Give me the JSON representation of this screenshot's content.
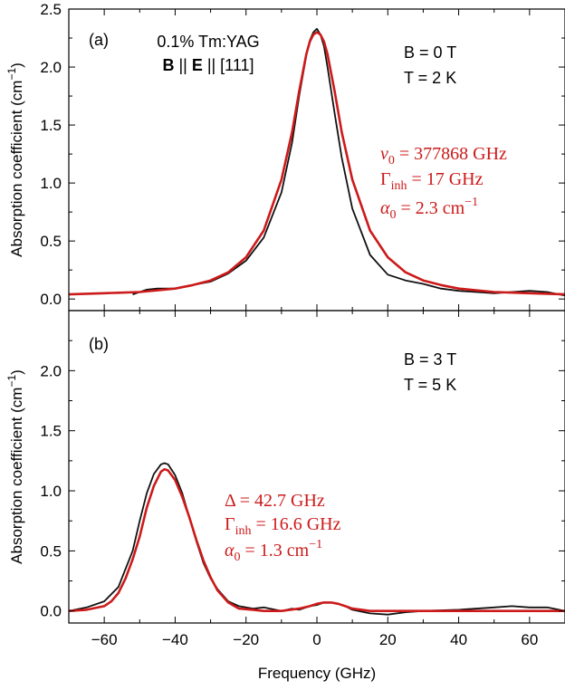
{
  "chart_data": {
    "type": "line",
    "xlabel": "Frequency (GHz)",
    "xlim": [
      -70,
      70
    ],
    "x_ticks": [
      -60,
      -40,
      -20,
      0,
      20,
      40,
      60
    ],
    "colors": {
      "measured": "#111111",
      "fit": "#cc1a1a"
    },
    "panels": [
      {
        "label": "(a)",
        "ylabel": "Absorption coefficient (cm",
        "ylabel_sup": "−1",
        "ylabel_close": ")",
        "ylim": [
          -0.1,
          2.5
        ],
        "y_ticks": [
          "0.0",
          "0.5",
          "1.0",
          "1.5",
          "2.0",
          "2.5"
        ],
        "sample_line1": "0.1% Tm:YAG",
        "sample_line2": {
          "b": "B",
          "sep1": " || ",
          "e": "E",
          "sep2": " || [111]"
        },
        "conditions": [
          "B = 0 T",
          "T = 2 K"
        ],
        "fit_params": {
          "line1": {
            "sym": "ν",
            "sub": "0",
            "rest": " = 377868 GHz"
          },
          "line2": {
            "sym": "Γ",
            "sub": "inh",
            "rest": " = 17 GHz"
          },
          "line3": {
            "sym": "α",
            "sub": "0",
            "rest": " = 2.3 cm",
            "sup": "−1"
          }
        },
        "series": [
          {
            "role": "measured",
            "x": [
              -52,
              -48,
              -45,
              -40,
              -35,
              -30,
              -25,
              -20,
              -15,
              -10,
              -7,
              -5,
              -3,
              -2,
              -1,
              0,
              1,
              2,
              3,
              5,
              7,
              10,
              15,
              20,
              25,
              30,
              35,
              40,
              45,
              50,
              55,
              60,
              65,
              70
            ],
            "y": [
              0.04,
              0.08,
              0.09,
              0.09,
              0.12,
              0.15,
              0.22,
              0.33,
              0.53,
              0.92,
              1.35,
              1.75,
              2.1,
              2.23,
              2.3,
              2.33,
              2.28,
              2.18,
              2.0,
              1.6,
              1.22,
              0.78,
              0.38,
              0.21,
              0.16,
              0.13,
              0.09,
              0.07,
              0.06,
              0.05,
              0.06,
              0.07,
              0.06,
              0.03
            ]
          },
          {
            "role": "fit",
            "x": [
              -70,
              -60,
              -50,
              -40,
              -35,
              -30,
              -25,
              -20,
              -15,
              -10,
              -7,
              -5,
              -3,
              -2,
              -1,
              0,
              1,
              2,
              3,
              5,
              7,
              10,
              15,
              20,
              25,
              30,
              35,
              40,
              50,
              60,
              70
            ],
            "y": [
              0.04,
              0.05,
              0.06,
              0.09,
              0.12,
              0.16,
              0.23,
              0.36,
              0.59,
              1.03,
              1.44,
              1.79,
              2.11,
              2.22,
              2.28,
              2.3,
              2.28,
              2.22,
              2.11,
              1.79,
              1.44,
              1.03,
              0.59,
              0.36,
              0.23,
              0.16,
              0.12,
              0.09,
              0.06,
              0.05,
              0.04
            ]
          }
        ]
      },
      {
        "label": "(b)",
        "ylabel": "Absorption coefficient (cm",
        "ylabel_sup": "−1",
        "ylabel_close": ")",
        "ylim": [
          -0.1,
          2.5
        ],
        "y_ticks": [
          "0.0",
          "0.5",
          "1.0",
          "1.5",
          "2.0"
        ],
        "conditions": [
          "B = 3 T",
          "T = 5 K"
        ],
        "fit_params": {
          "line1": {
            "sym": "Δ",
            "sub": "",
            "rest": " = 42.7 GHz"
          },
          "line2": {
            "sym": "Γ",
            "sub": "inh",
            "rest": " = 16.6 GHz"
          },
          "line3": {
            "sym": "α",
            "sub": "0",
            "rest": " = 1.3 cm",
            "sup": "−1"
          }
        },
        "series": [
          {
            "role": "measured",
            "x": [
              -70,
              -65,
              -60,
              -56,
              -52,
              -50,
              -48,
              -46,
              -44,
              -43,
              -42,
              -40,
              -38,
              -36,
              -34,
              -32,
              -30,
              -28,
              -25,
              -22,
              -18,
              -15,
              -10,
              -7,
              -5,
              -2,
              0,
              2,
              4,
              6,
              8,
              10,
              15,
              20,
              25,
              30,
              40,
              50,
              55,
              60,
              65,
              70
            ],
            "y": [
              0.0,
              0.03,
              0.08,
              0.2,
              0.5,
              0.75,
              0.98,
              1.14,
              1.22,
              1.23,
              1.22,
              1.13,
              0.98,
              0.78,
              0.58,
              0.4,
              0.27,
              0.18,
              0.08,
              0.04,
              0.02,
              0.03,
              0.0,
              0.02,
              0.01,
              0.04,
              0.05,
              0.07,
              0.07,
              0.06,
              0.04,
              0.01,
              -0.02,
              -0.03,
              -0.01,
              0.0,
              0.01,
              0.03,
              0.04,
              0.03,
              0.03,
              0.0
            ]
          },
          {
            "role": "fit",
            "x": [
              -70,
              -65,
              -60,
              -58,
              -56,
              -54,
              -52,
              -50,
              -48,
              -46,
              -44,
              -43,
              -42,
              -40,
              -38,
              -36,
              -34,
              -32,
              -30,
              -28,
              -25,
              -22,
              -18,
              -15,
              -10,
              -5,
              -2,
              0,
              2,
              4,
              6,
              8,
              10,
              15,
              20,
              30,
              40,
              50,
              60,
              70
            ],
            "y": [
              0.0,
              0.01,
              0.04,
              0.08,
              0.15,
              0.27,
              0.43,
              0.62,
              0.86,
              1.04,
              1.16,
              1.18,
              1.17,
              1.09,
              0.95,
              0.78,
              0.59,
              0.42,
              0.28,
              0.17,
              0.07,
              0.02,
              0.01,
              0.0,
              0.0,
              0.02,
              0.04,
              0.06,
              0.07,
              0.07,
              0.06,
              0.04,
              0.02,
              0.0,
              0.0,
              0.0,
              0.0,
              0.0,
              0.0,
              0.0
            ]
          }
        ]
      }
    ]
  }
}
